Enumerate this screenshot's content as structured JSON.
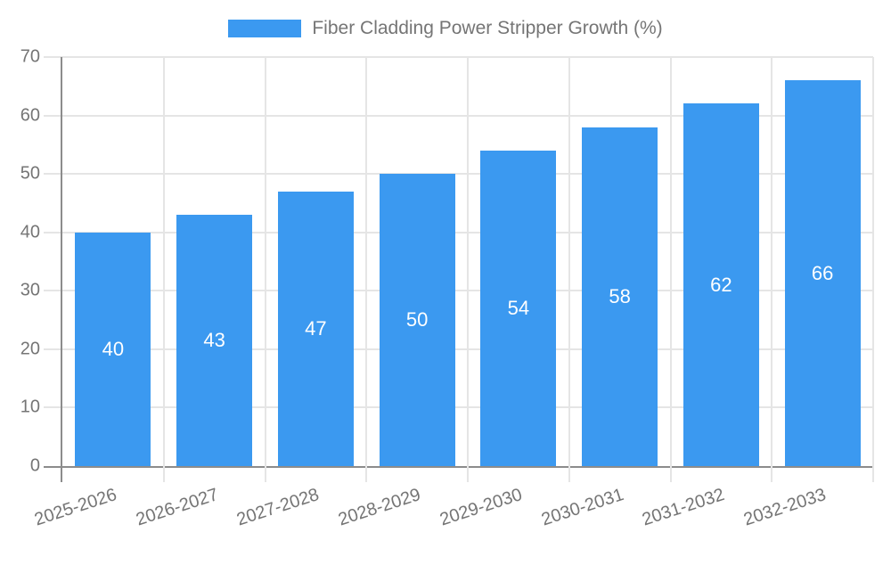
{
  "legend": {
    "label": "Fiber Cladding Power Stripper Growth (%)"
  },
  "colors": {
    "bar": "#3b99f0",
    "grid": "#e5e5e5",
    "axis": "#8c8c8c",
    "tick_text": "#757575",
    "bar_label_text": "#ffffff",
    "background": "#ffffff"
  },
  "chart_data": {
    "type": "bar",
    "title": "Fiber Cladding Power Stripper Growth (%)",
    "categories": [
      "2025-2026",
      "2026-2027",
      "2027-2028",
      "2028-2029",
      "2029-2030",
      "2030-2031",
      "2031-2032",
      "2032-2033"
    ],
    "values": [
      40,
      43,
      47,
      50,
      54,
      58,
      62,
      66
    ],
    "bar_labels": [
      "40",
      "43",
      "47",
      "50",
      "54",
      "58",
      "62",
      "66"
    ],
    "xlabel": "",
    "ylabel": "",
    "ylim": [
      0,
      70
    ],
    "yticks": [
      0,
      10,
      20,
      30,
      40,
      50,
      60,
      70
    ],
    "ytick_labels": [
      "0",
      "10",
      "20",
      "30",
      "40",
      "50",
      "60",
      "70"
    ],
    "grid": true,
    "legend_position": "top",
    "bar_label_position": "center"
  }
}
